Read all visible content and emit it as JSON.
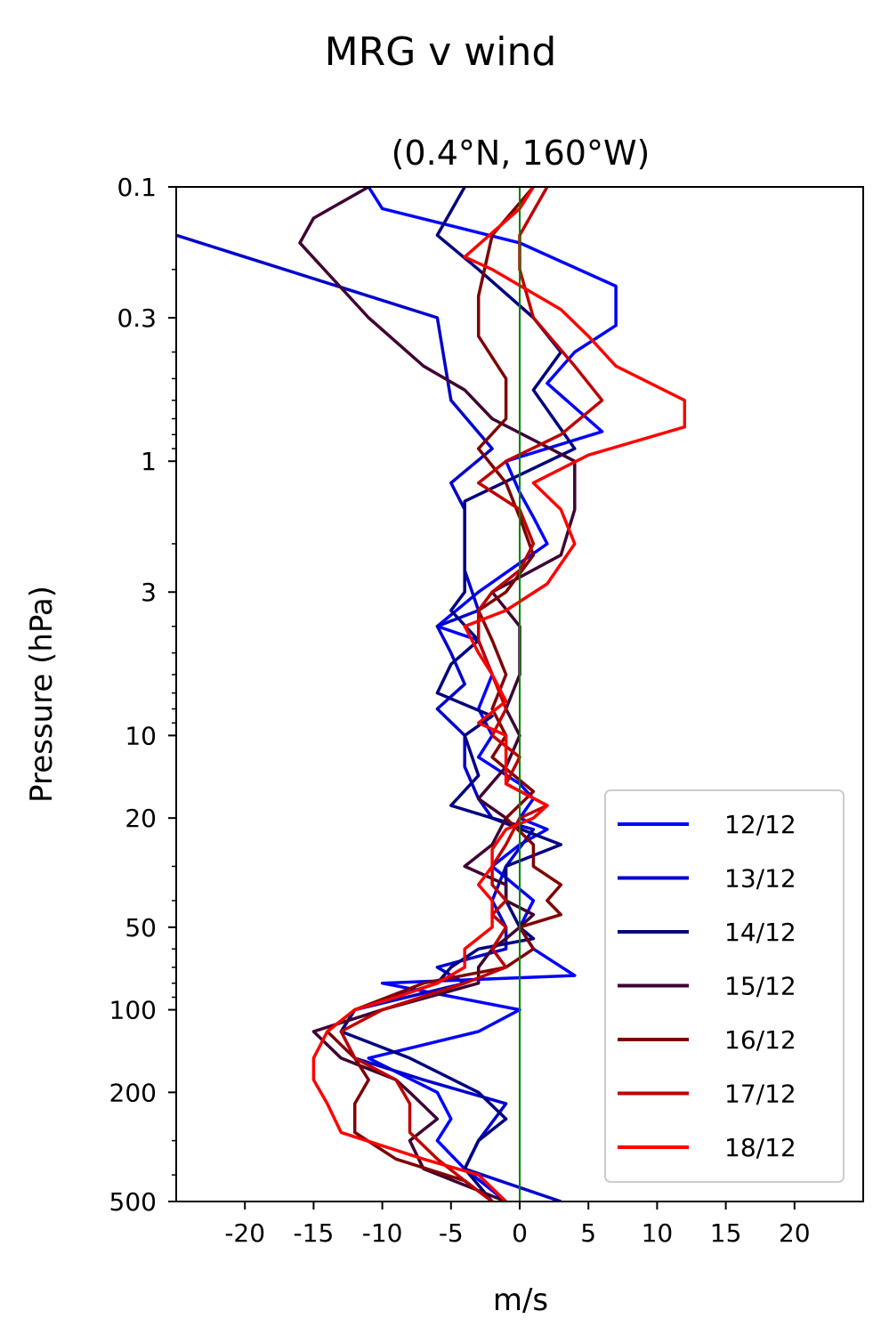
{
  "chart_data": {
    "type": "line",
    "suptitle": "MRG v wind",
    "title": "(0.4°N, 160°W)",
    "xlabel": "m/s",
    "ylabel": "Pressure (hPa)",
    "xlim": [
      -25,
      25
    ],
    "ylim": [
      500,
      0.1
    ],
    "yscale": "log",
    "x_ticks": [
      -20,
      -15,
      -10,
      -5,
      0,
      5,
      10,
      15,
      20
    ],
    "x_tick_labels": [
      "-20",
      "-15",
      "-10",
      "-5",
      "0",
      "5",
      "10",
      "15",
      "20"
    ],
    "y_ticks": [
      0.1,
      0.3,
      1,
      3,
      10,
      20,
      50,
      100,
      200,
      500
    ],
    "y_tick_labels": [
      "0.1",
      "0.3",
      "1",
      "3",
      "10",
      "20",
      "50",
      "100",
      "200",
      "500"
    ],
    "zero_line_color": "#008000",
    "grid": false,
    "legend_position": "lower right",
    "series": [
      {
        "name": "12/12",
        "color": "#0000ff",
        "points": [
          [
            -11,
            0.1
          ],
          [
            -10,
            0.12
          ],
          [
            0,
            0.16
          ],
          [
            7,
            0.23
          ],
          [
            7,
            0.32
          ],
          [
            4,
            0.4
          ],
          [
            2,
            0.52
          ],
          [
            6,
            0.78
          ],
          [
            -1,
            1.0
          ],
          [
            0,
            1.3
          ],
          [
            1,
            1.6
          ],
          [
            2,
            2.0
          ],
          [
            -3,
            3.0
          ],
          [
            -6,
            4.0
          ],
          [
            -3,
            4.5
          ],
          [
            -2,
            6.0
          ],
          [
            -3,
            8.0
          ],
          [
            -2,
            10.0
          ],
          [
            -3,
            12
          ],
          [
            0,
            15
          ],
          [
            1,
            17
          ],
          [
            0,
            20
          ],
          [
            2,
            22
          ],
          [
            0,
            25
          ],
          [
            -2,
            30
          ],
          [
            1,
            40
          ],
          [
            0,
            50
          ],
          [
            1,
            60
          ],
          [
            4,
            75
          ],
          [
            -10,
            80
          ],
          [
            0,
            100
          ],
          [
            -3,
            120
          ],
          [
            -11,
            150
          ],
          [
            -6,
            200
          ],
          [
            -5,
            250
          ],
          [
            -6,
            300
          ],
          [
            -4,
            380
          ],
          [
            -1,
            500
          ]
        ]
      },
      {
        "name": "13/12",
        "color": "#0000cc",
        "points": [
          [
            -25,
            0.15
          ],
          [
            -6,
            0.3
          ],
          [
            -5,
            0.6
          ],
          [
            -2,
            0.9
          ],
          [
            -5,
            1.2
          ],
          [
            -4,
            1.5
          ],
          [
            -4,
            2.5
          ],
          [
            -3,
            3.5
          ],
          [
            -6,
            4.0
          ],
          [
            -5,
            5.0
          ],
          [
            -4,
            6.5
          ],
          [
            -6,
            8.0
          ],
          [
            -4,
            10.0
          ],
          [
            -4,
            13
          ],
          [
            -3,
            17
          ],
          [
            -2,
            20
          ],
          [
            1,
            22
          ],
          [
            -1,
            30
          ],
          [
            -2,
            40
          ],
          [
            -1,
            50
          ],
          [
            -1,
            55
          ],
          [
            -1,
            60
          ],
          [
            -6,
            70
          ],
          [
            -4,
            80
          ],
          [
            -12,
            100
          ],
          [
            -13,
            120
          ],
          [
            -12,
            150
          ],
          [
            -7,
            180
          ],
          [
            -1,
            220
          ],
          [
            -3,
            300
          ],
          [
            -4,
            380
          ],
          [
            3,
            500
          ]
        ]
      },
      {
        "name": "14/12",
        "color": "#00007f",
        "points": [
          [
            -4,
            0.1
          ],
          [
            -6,
            0.15
          ],
          [
            -3,
            0.2
          ],
          [
            1,
            0.3
          ],
          [
            3,
            0.4
          ],
          [
            1,
            0.55
          ],
          [
            4,
            0.9
          ],
          [
            -4,
            1.4
          ],
          [
            -4,
            2.0
          ],
          [
            -4,
            2.5
          ],
          [
            -4,
            3.0
          ],
          [
            -5,
            3.5
          ],
          [
            -3,
            4.5
          ],
          [
            -5,
            5.5
          ],
          [
            -6,
            7.0
          ],
          [
            -2,
            8.5
          ],
          [
            -4,
            10
          ],
          [
            -3,
            14
          ],
          [
            -5,
            18
          ],
          [
            -2,
            20
          ],
          [
            3,
            25
          ],
          [
            -1,
            30
          ],
          [
            -1,
            40
          ],
          [
            0,
            50
          ],
          [
            1,
            55
          ],
          [
            -3,
            60
          ],
          [
            -5,
            70
          ],
          [
            -6,
            80
          ],
          [
            -12,
            100
          ],
          [
            -13,
            120
          ],
          [
            -8,
            150
          ],
          [
            -3,
            200
          ],
          [
            -1,
            250
          ],
          [
            -3,
            300
          ],
          [
            -4,
            380
          ],
          [
            -2,
            500
          ]
        ]
      },
      {
        "name": "15/12",
        "color": "#3f0033",
        "points": [
          [
            -11,
            0.1
          ],
          [
            -15,
            0.13
          ],
          [
            -16,
            0.16
          ],
          [
            -11,
            0.3
          ],
          [
            -7,
            0.45
          ],
          [
            -4,
            0.55
          ],
          [
            -2,
            0.7
          ],
          [
            4,
            1.0
          ],
          [
            4,
            1.5
          ],
          [
            3,
            2.2
          ],
          [
            -2,
            3.0
          ],
          [
            0,
            4.0
          ],
          [
            0,
            6.0
          ],
          [
            -1,
            8.0
          ],
          [
            0,
            10
          ],
          [
            -1,
            13
          ],
          [
            -3,
            17
          ],
          [
            -1,
            20
          ],
          [
            -2,
            25
          ],
          [
            -4,
            30
          ],
          [
            -1,
            35
          ],
          [
            -1,
            40
          ],
          [
            1,
            45
          ],
          [
            0,
            50
          ],
          [
            -1,
            55
          ],
          [
            -2,
            60
          ],
          [
            -3,
            70
          ],
          [
            -3,
            80
          ],
          [
            -10,
            100
          ],
          [
            -15,
            120
          ],
          [
            -13,
            150
          ],
          [
            -9,
            180
          ],
          [
            -8,
            200
          ],
          [
            -6,
            250
          ],
          [
            -8,
            300
          ],
          [
            -7,
            380
          ],
          [
            -1,
            500
          ]
        ]
      },
      {
        "name": "16/12",
        "color": "#7f0000",
        "points": [
          [
            1,
            0.1
          ],
          [
            -2,
            0.15
          ],
          [
            -3,
            0.25
          ],
          [
            -3,
            0.35
          ],
          [
            -1,
            0.5
          ],
          [
            -1,
            0.7
          ],
          [
            -3,
            0.9
          ],
          [
            -1,
            1.2
          ],
          [
            0,
            1.6
          ],
          [
            1,
            2.2
          ],
          [
            -1,
            3.0
          ],
          [
            -3,
            3.5
          ],
          [
            -2,
            4.5
          ],
          [
            -1,
            6.0
          ],
          [
            -2,
            8.0
          ],
          [
            -1,
            10
          ],
          [
            -2,
            12
          ],
          [
            1,
            16
          ],
          [
            -1,
            20
          ],
          [
            1,
            25
          ],
          [
            1,
            30
          ],
          [
            3,
            35
          ],
          [
            2,
            40
          ],
          [
            3,
            45
          ],
          [
            0,
            50
          ],
          [
            1,
            60
          ],
          [
            -1,
            70
          ],
          [
            -7,
            80
          ],
          [
            -12,
            100
          ],
          [
            -14,
            120
          ],
          [
            -12,
            150
          ],
          [
            -11,
            180
          ],
          [
            -12,
            220
          ],
          [
            -12,
            280
          ],
          [
            -9,
            350
          ],
          [
            -4,
            420
          ],
          [
            -2,
            500
          ]
        ]
      },
      {
        "name": "17/12",
        "color": "#bf0000",
        "points": [
          [
            2,
            0.1
          ],
          [
            0,
            0.15
          ],
          [
            0,
            0.2
          ],
          [
            1,
            0.3
          ],
          [
            4,
            0.45
          ],
          [
            6,
            0.6
          ],
          [
            3,
            0.8
          ],
          [
            -1,
            1.0
          ],
          [
            -3,
            1.2
          ],
          [
            0,
            1.5
          ],
          [
            1,
            2.0
          ],
          [
            0,
            2.5
          ],
          [
            -2,
            3.0
          ],
          [
            -3,
            3.5
          ],
          [
            -3,
            4.5
          ],
          [
            -2,
            6.0
          ],
          [
            -1,
            8.0
          ],
          [
            -2,
            10
          ],
          [
            0,
            12
          ],
          [
            -1,
            15
          ],
          [
            2,
            18
          ],
          [
            0,
            20
          ],
          [
            -1,
            25
          ],
          [
            -2,
            30
          ],
          [
            -2,
            35
          ],
          [
            -1,
            40
          ],
          [
            -2,
            45
          ],
          [
            -1,
            50
          ],
          [
            -2,
            60
          ],
          [
            -1,
            70
          ],
          [
            -4,
            80
          ],
          [
            -10,
            100
          ],
          [
            -13,
            120
          ],
          [
            -12,
            150
          ],
          [
            -9,
            180
          ],
          [
            -8,
            220
          ],
          [
            -8,
            280
          ],
          [
            -6,
            350
          ],
          [
            -4,
            420
          ],
          [
            -2,
            500
          ]
        ]
      },
      {
        "name": "18/12",
        "color": "#ff0000",
        "points": [
          [
            1,
            0.1
          ],
          [
            0,
            0.12
          ],
          [
            -4,
            0.18
          ],
          [
            -2,
            0.2
          ],
          [
            3,
            0.28
          ],
          [
            5,
            0.35
          ],
          [
            7,
            0.45
          ],
          [
            12,
            0.6
          ],
          [
            12,
            0.75
          ],
          [
            5,
            0.95
          ],
          [
            1,
            1.2
          ],
          [
            3,
            1.5
          ],
          [
            4,
            2.0
          ],
          [
            2,
            2.8
          ],
          [
            -1,
            3.5
          ],
          [
            -4,
            4.0
          ],
          [
            -3,
            5.0
          ],
          [
            -2,
            6.0
          ],
          [
            -1,
            7.5
          ],
          [
            -3,
            9.0
          ],
          [
            -1,
            10
          ],
          [
            -1,
            12
          ],
          [
            -1,
            15
          ],
          [
            2,
            18
          ],
          [
            1,
            20
          ],
          [
            -1,
            22
          ],
          [
            -2,
            26
          ],
          [
            -2,
            30
          ],
          [
            -3,
            35
          ],
          [
            -2,
            40
          ],
          [
            -2,
            50
          ],
          [
            -4,
            60
          ],
          [
            -4,
            70
          ],
          [
            -6,
            80
          ],
          [
            -9,
            90
          ],
          [
            -12,
            100
          ],
          [
            -14,
            120
          ],
          [
            -15,
            150
          ],
          [
            -15,
            180
          ],
          [
            -14,
            220
          ],
          [
            -13,
            280
          ],
          [
            -7,
            350
          ],
          [
            -3,
            400
          ],
          [
            -1,
            500
          ]
        ]
      }
    ]
  }
}
